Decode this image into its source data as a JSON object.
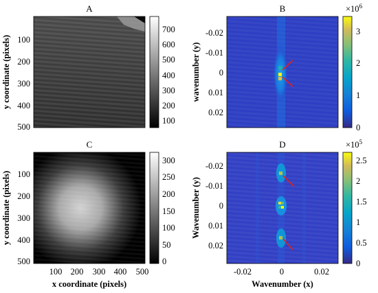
{
  "panels": [
    {
      "id": "A",
      "title": "A",
      "kind": "image-gray",
      "ylabel": "y coordinate (pixels)",
      "xlabel": "",
      "yticks": [
        "100",
        "200",
        "300",
        "400",
        "500"
      ],
      "xticks": [],
      "colorbar": {
        "colormap": "gray",
        "ticks": [
          "100",
          "200",
          "300",
          "400",
          "500",
          "600",
          "700"
        ],
        "exponent": ""
      }
    },
    {
      "id": "B",
      "title": "B",
      "kind": "spectrum",
      "ylabel": "wavenumber (y)",
      "xlabel": "",
      "yticks": [
        "-0.02",
        "-0.01",
        "0",
        "0.01",
        "0.02"
      ],
      "xticks": [],
      "colorbar": {
        "colormap": "parula",
        "ticks": [
          "0",
          "1",
          "2",
          "3"
        ],
        "exponent_base": "×10",
        "exponent": "6"
      }
    },
    {
      "id": "C",
      "title": "C",
      "kind": "image-gray-vignette",
      "ylabel": "y coordinate (pixels)",
      "xlabel": "x coordinate (pixels)",
      "yticks": [
        "100",
        "200",
        "300",
        "400",
        "500"
      ],
      "xticks": [
        "100",
        "200",
        "300",
        "400",
        "500"
      ],
      "colorbar": {
        "colormap": "gray",
        "ticks": [
          "0",
          "50",
          "100",
          "150",
          "200",
          "250",
          "300"
        ],
        "exponent": ""
      }
    },
    {
      "id": "D",
      "title": "D",
      "kind": "spectrum-peaks",
      "ylabel": "Wavenumber (y)",
      "xlabel": "Wavenumber (x)",
      "yticks": [
        "-0.02",
        "-0.01",
        "0",
        "0.01",
        "0.02"
      ],
      "xticks": [
        "-0.02",
        "0",
        "0.02"
      ],
      "colorbar": {
        "colormap": "parula",
        "ticks": [
          "0",
          "0.5",
          "1",
          "1.5",
          "2",
          "2.5"
        ],
        "exponent_base": "×10",
        "exponent": "5"
      }
    }
  ],
  "chart_data": [
    {
      "type": "heatmap",
      "title": "A",
      "ylabel": "y coordinate (pixels)",
      "xlabel": "",
      "ylim": [
        1,
        512
      ],
      "colorbar_range": [
        50,
        780
      ],
      "colormap": "gray",
      "colorbar_ticks": [
        100,
        200,
        300,
        400,
        500,
        600,
        700
      ]
    },
    {
      "type": "heatmap",
      "title": "B",
      "ylabel": "wavenumber (y)",
      "xlabel": "",
      "ylim": [
        -0.028,
        0.028
      ],
      "colorbar_range": [
        0,
        3400000
      ],
      "colormap": "parula",
      "colorbar_ticks": [
        0,
        1000000,
        2000000,
        3000000
      ],
      "colorbar_multiplier": "×10^6"
    },
    {
      "type": "heatmap",
      "title": "C",
      "ylabel": "y coordinate (pixels)",
      "xlabel": "x coordinate (pixels)",
      "xlim": [
        1,
        512
      ],
      "ylim": [
        1,
        512
      ],
      "colorbar_range": [
        0,
        330
      ],
      "colormap": "gray",
      "colorbar_ticks": [
        0,
        50,
        100,
        150,
        200,
        250,
        300
      ]
    },
    {
      "type": "heatmap",
      "title": "D",
      "ylabel": "Wavenumber (y)",
      "xlabel": "Wavenumber (x)",
      "xlim": [
        -0.028,
        0.028
      ],
      "ylim": [
        -0.028,
        0.028
      ],
      "colorbar_range": [
        0,
        270000
      ],
      "colormap": "parula",
      "colorbar_ticks": [
        0,
        50000,
        100000,
        150000,
        200000,
        250000
      ],
      "colorbar_multiplier": "×10^5"
    }
  ]
}
